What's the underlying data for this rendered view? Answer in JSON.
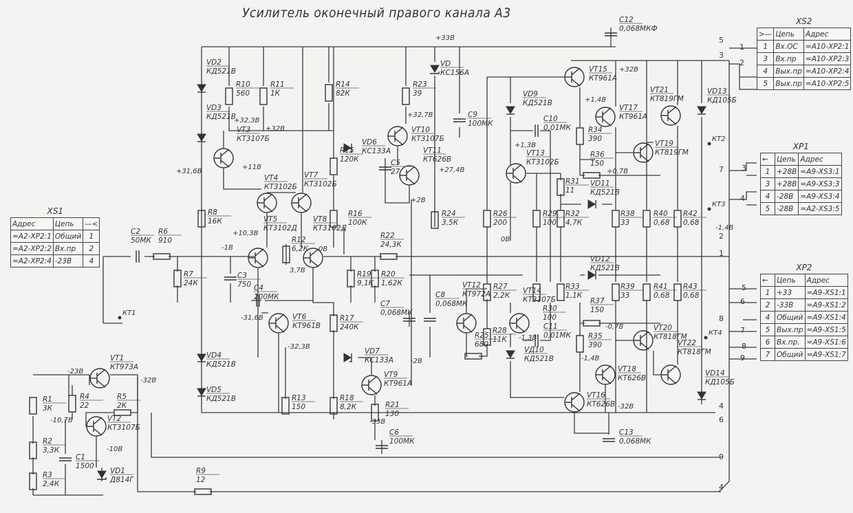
{
  "title": "Усилитель оконечный правого канала А3",
  "colors": {
    "ink": "#333333",
    "paper": "#f3f3f1"
  },
  "components": [
    {
      "ref": "R10",
      "value": "560",
      "kind": "resistor"
    },
    {
      "ref": "R11",
      "value": "1К",
      "kind": "resistor"
    },
    {
      "ref": "R14",
      "value": "82К",
      "kind": "resistor"
    },
    {
      "ref": "R23",
      "value": "39",
      "kind": "resistor"
    },
    {
      "ref": "VD",
      "value": "КС156А",
      "kind": "zener"
    },
    {
      "ref": "C9",
      "value": "100МК",
      "kind": "capacitor"
    },
    {
      "ref": "VT10",
      "value": "КТ3107Б",
      "kind": "transistor"
    },
    {
      "ref": "VT11",
      "value": "КТ626В",
      "kind": "transistor"
    },
    {
      "ref": "VD6",
      "value": "КС133А",
      "kind": "zener"
    },
    {
      "ref": "C5",
      "value": "27",
      "kind": "capacitor"
    },
    {
      "ref": "R15",
      "value": "120К",
      "kind": "resistor"
    },
    {
      "ref": "VT3",
      "value": "КТ3107Б",
      "kind": "transistor"
    },
    {
      "ref": "VD2",
      "value": "КД521В",
      "kind": "diode"
    },
    {
      "ref": "VD3",
      "value": "КД521В",
      "kind": "diode"
    },
    {
      "ref": "VT4",
      "value": "КТ3102Б",
      "kind": "transistor"
    },
    {
      "ref": "VT7",
      "value": "КТ3102Б",
      "kind": "transistor"
    },
    {
      "ref": "R8",
      "value": "16К",
      "kind": "resistor"
    },
    {
      "ref": "VT5",
      "value": "КТ3102Д",
      "kind": "transistor"
    },
    {
      "ref": "R12",
      "value": "6,2К",
      "kind": "resistor"
    },
    {
      "ref": "VT8",
      "value": "КТ3102Д",
      "kind": "transistor"
    },
    {
      "ref": "R16",
      "value": "100К",
      "kind": "resistor"
    },
    {
      "ref": "R22",
      "value": "24,3К",
      "kind": "resistor"
    },
    {
      "ref": "R24",
      "value": "3,5К",
      "kind": "resistor"
    },
    {
      "ref": "C2",
      "value": "50МК",
      "kind": "capacitor"
    },
    {
      "ref": "R6",
      "value": "910",
      "kind": "resistor"
    },
    {
      "ref": "R7",
      "value": "24К",
      "kind": "resistor"
    },
    {
      "ref": "C3",
      "value": "750",
      "kind": "capacitor"
    },
    {
      "ref": "C4",
      "value": "200МК",
      "kind": "capacitor"
    },
    {
      "ref": "R19",
      "value": "9,1К",
      "kind": "resistor"
    },
    {
      "ref": "R20",
      "value": "1,62К",
      "kind": "resistor"
    },
    {
      "ref": "C7",
      "value": "0,068МК",
      "kind": "capacitor"
    },
    {
      "ref": "C8",
      "value": "0,068МК",
      "kind": "capacitor"
    },
    {
      "ref": "VT12",
      "value": "КТ972А",
      "kind": "transistor"
    },
    {
      "ref": "R25",
      "value": "680",
      "kind": "resistor"
    },
    {
      "ref": "R26",
      "value": "200",
      "kind": "resistor"
    },
    {
      "ref": "R27",
      "value": "2,2К",
      "kind": "resistor"
    },
    {
      "ref": "R28",
      "value": "11К",
      "kind": "resistor"
    },
    {
      "ref": "VT14",
      "value": "КТ3107Б",
      "kind": "transistor"
    },
    {
      "ref": "R29",
      "value": "100",
      "kind": "resistor"
    },
    {
      "ref": "R30",
      "value": "100",
      "kind": "resistor"
    },
    {
      "ref": "R31",
      "value": "11",
      "kind": "resistor"
    },
    {
      "ref": "R32",
      "value": "4,7К",
      "kind": "resistor"
    },
    {
      "ref": "R33",
      "value": "1,1К",
      "kind": "resistor"
    },
    {
      "ref": "C10",
      "value": "0,01МК",
      "kind": "capacitor"
    },
    {
      "ref": "VD9",
      "value": "КД521В",
      "kind": "diode"
    },
    {
      "ref": "VT13",
      "value": "КТ3102Б",
      "kind": "transistor"
    },
    {
      "ref": "VT15",
      "value": "КТ961А",
      "kind": "transistor"
    },
    {
      "ref": "VT17",
      "value": "КТ961А",
      "kind": "transistor"
    },
    {
      "ref": "R34",
      "value": "390",
      "kind": "resistor"
    },
    {
      "ref": "R36",
      "value": "150",
      "kind": "resistor"
    },
    {
      "ref": "VD11",
      "value": "КД521В",
      "kind": "diode"
    },
    {
      "ref": "VT19",
      "value": "КТ819ГМ",
      "kind": "transistor"
    },
    {
      "ref": "VT21",
      "value": "КТ819ГМ",
      "kind": "transistor"
    },
    {
      "ref": "VD13",
      "value": "КД105Б",
      "kind": "diode"
    },
    {
      "ref": "R38",
      "value": "33",
      "kind": "resistor"
    },
    {
      "ref": "R40",
      "value": "0,68",
      "kind": "resistor"
    },
    {
      "ref": "R42",
      "value": "0,68",
      "kind": "resistor"
    },
    {
      "ref": "C12",
      "value": "0,068МКФ",
      "kind": "capacitor"
    },
    {
      "ref": "VD12",
      "value": "КД521В",
      "kind": "diode"
    },
    {
      "ref": "R37",
      "value": "150",
      "kind": "resistor"
    },
    {
      "ref": "R39",
      "value": "33",
      "kind": "resistor"
    },
    {
      "ref": "R41",
      "value": "0,68",
      "kind": "resistor"
    },
    {
      "ref": "R43",
      "value": "0,68",
      "kind": "resistor"
    },
    {
      "ref": "C11",
      "value": "0,01МК",
      "kind": "capacitor"
    },
    {
      "ref": "VД10",
      "value": "КД521В",
      "kind": "diode"
    },
    {
      "ref": "R35",
      "value": "390",
      "kind": "resistor"
    },
    {
      "ref": "VT20",
      "value": "КТ818ГМ",
      "kind": "transistor"
    },
    {
      "ref": "VT22",
      "value": "КТ818ГМ",
      "kind": "transistor"
    },
    {
      "ref": "VT18",
      "value": "КТ626В",
      "kind": "transistor"
    },
    {
      "ref": "VD14",
      "value": "КД105Б",
      "kind": "diode"
    },
    {
      "ref": "VT16",
      "value": "КТ626В",
      "kind": "transistor"
    },
    {
      "ref": "C13",
      "value": "0,068МК",
      "kind": "capacitor"
    },
    {
      "ref": "VT6",
      "value": "КТ961В",
      "kind": "transistor"
    },
    {
      "ref": "R17",
      "value": "240К",
      "kind": "resistor"
    },
    {
      "ref": "VD7",
      "value": "КС133А",
      "kind": "zener"
    },
    {
      "ref": "VT9",
      "value": "КТ961А",
      "kind": "transistor"
    },
    {
      "ref": "R21",
      "value": "130",
      "kind": "resistor"
    },
    {
      "ref": "C6",
      "value": "100МК",
      "kind": "capacitor"
    },
    {
      "ref": "R13",
      "value": "150",
      "kind": "resistor"
    },
    {
      "ref": "R18",
      "value": "8,2К",
      "kind": "resistor"
    },
    {
      "ref": "VD4",
      "value": "КД521В",
      "kind": "diode"
    },
    {
      "ref": "VD5",
      "value": "КД521В",
      "kind": "diode"
    },
    {
      "ref": "VT1",
      "value": "КТ973А",
      "kind": "transistor"
    },
    {
      "ref": "R1",
      "value": "3К",
      "kind": "resistor"
    },
    {
      "ref": "R4",
      "value": "22",
      "kind": "resistor"
    },
    {
      "ref": "R5",
      "value": "2К",
      "kind": "resistor"
    },
    {
      "ref": "VT2",
      "value": "КТ3107Б",
      "kind": "transistor"
    },
    {
      "ref": "R2",
      "value": "3,3К",
      "kind": "resistor"
    },
    {
      "ref": "R3",
      "value": "2,4К",
      "kind": "resistor"
    },
    {
      "ref": "C1",
      "value": "1500",
      "kind": "capacitor"
    },
    {
      "ref": "VD1",
      "value": "Д814Г",
      "kind": "zener"
    },
    {
      "ref": "R9",
      "value": "12",
      "kind": "resistor"
    }
  ],
  "voltage_labels": [
    "+33В",
    "+32,3В",
    "+32В",
    "+32,7В",
    "+27,4В",
    "+11В",
    "+31,6В",
    "+2В",
    "+10,3В",
    "-1В",
    "0В",
    "3,7В",
    "-31,6В",
    "-32,3В",
    "-2В",
    "-33В",
    "-23В",
    "-32В",
    "-10,7В",
    "-10В",
    "+32В",
    "+1,4В",
    "+1,3В",
    "+0,7В",
    "0В",
    "-1,3В",
    "-0,7В",
    "-1,4В",
    "-32В",
    "-1,4В"
  ],
  "test_points": [
    "КТ1",
    "КТ2",
    "КТ3",
    "КТ4"
  ],
  "net_numbers": [
    "5",
    "3",
    "1",
    "2",
    "7",
    "3",
    "4",
    "2",
    "1",
    "5",
    "6",
    "7",
    "8",
    "8",
    "9",
    "4",
    "6",
    "9",
    "4"
  ],
  "connectors": {
    "XS1": {
      "name": "XS1",
      "headers": [
        "Адрес",
        "Цепь",
        "—<"
      ],
      "rows": [
        [
          "=А2-ХР2:1",
          "Общий",
          "1"
        ],
        [
          "=А2-ХР2:2",
          "Вх.пр",
          "2"
        ],
        [
          "=А2-ХР2:4",
          "-23В",
          "4"
        ]
      ]
    },
    "XS2": {
      "name": "XS2",
      "headers": [
        ">—",
        "Цепь",
        "Адрес"
      ],
      "rows": [
        [
          "1",
          "Вх.ОС",
          "=А10-ХР2:1"
        ],
        [
          "3",
          "Вх.пр",
          "=А10-ХР2:3"
        ],
        [
          "4",
          "Вых.пр",
          "=А10-ХР2:4"
        ],
        [
          "5",
          "Вых.пр",
          "=А10-ХР2:5"
        ]
      ]
    },
    "XP1": {
      "name": "ХР1",
      "headers": [
        "←",
        "Цепь",
        "Адрес"
      ],
      "rows": [
        [
          "1",
          "+28В",
          "=А9-XS3:1"
        ],
        [
          "3",
          "+28В",
          "=А9-XS3:3"
        ],
        [
          "4",
          "-28В",
          "=А9-XS3:4"
        ],
        [
          "5",
          "-28В",
          "=А2-XS3:5"
        ]
      ]
    },
    "XP2": {
      "name": "ХР2",
      "headers": [
        "←",
        "Цепь",
        "Адрес"
      ],
      "rows": [
        [
          "1",
          "+33",
          "=А9-XS1:1"
        ],
        [
          "2",
          "-33В",
          "=А9-XS1:2"
        ],
        [
          "4",
          "Общий",
          "=А9-XS1:4"
        ],
        [
          "5",
          "Вых.пр",
          "=А9-XS1:5"
        ],
        [
          "6",
          "Вх.пр.",
          "=А9-XS1:6"
        ],
        [
          "7",
          "Общий",
          "=А9-XS1:7"
        ]
      ]
    }
  }
}
